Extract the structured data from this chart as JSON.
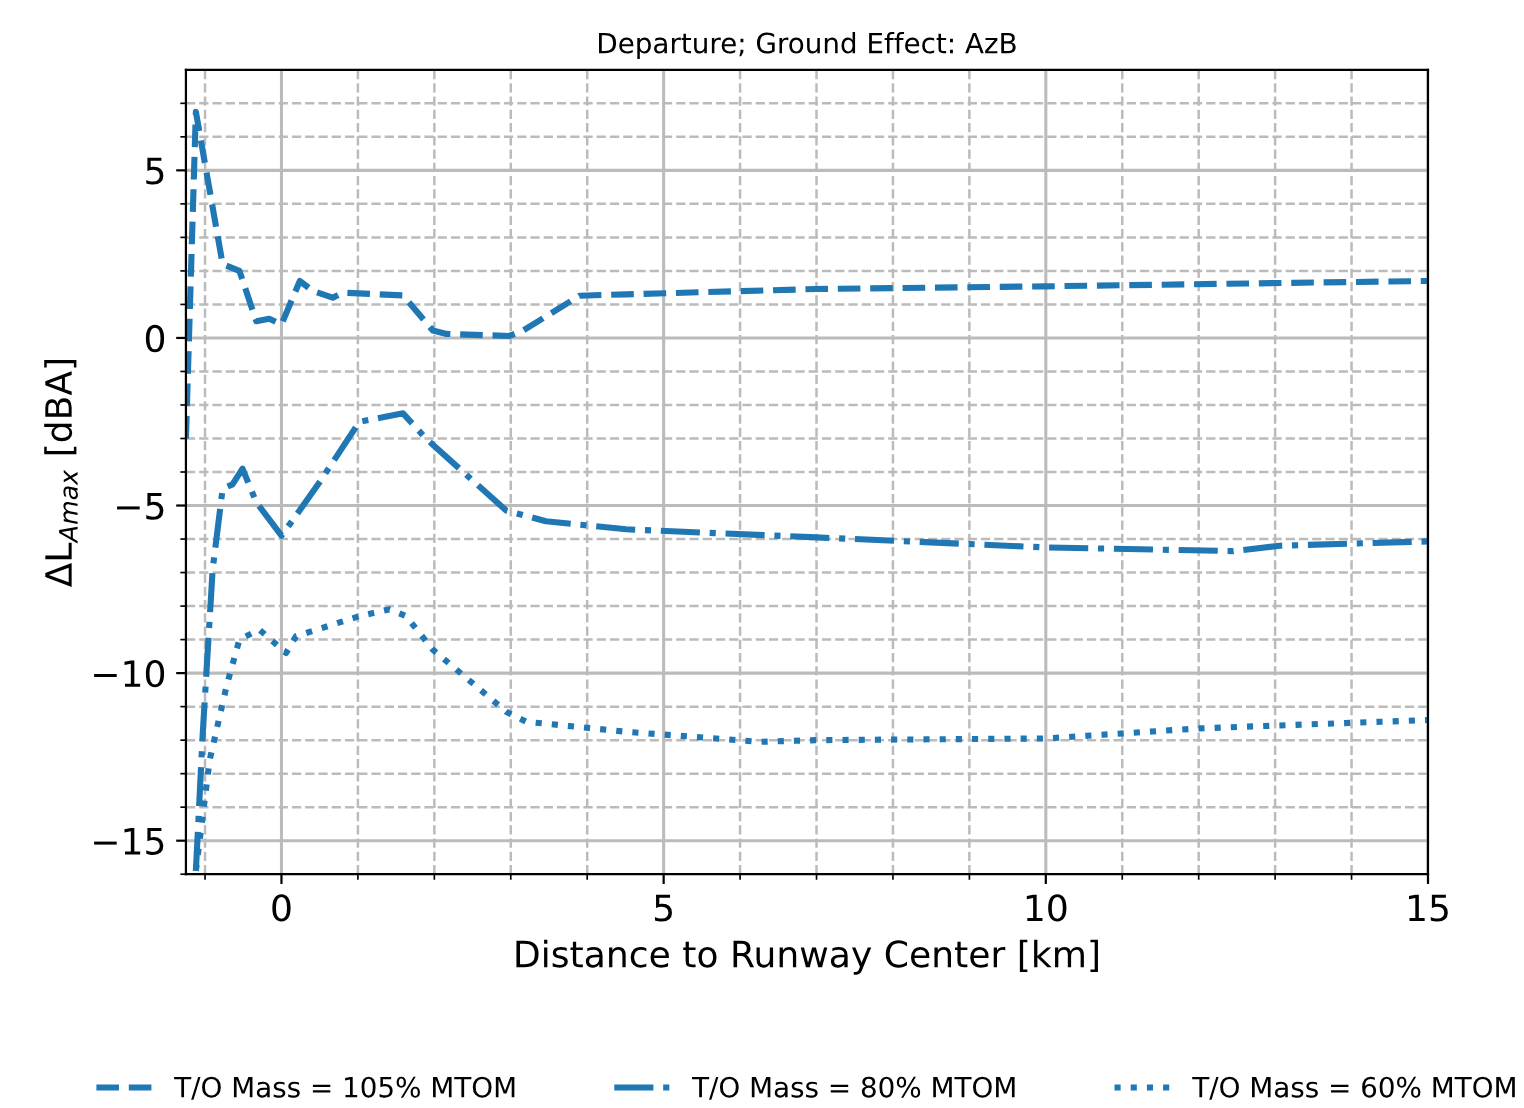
{
  "chart_data": {
    "type": "line",
    "title": "Departure; Ground Effect: AzB",
    "xlabel": "Distance to Runway Center [km]",
    "ylabel": "ΔL$_{Amax}$ [dBA]",
    "xlim": [
      -1.25,
      15
    ],
    "ylim": [
      -16,
      8
    ],
    "xticks": [
      {
        "value": -1,
        "label": null
      },
      0,
      {
        "value": 1,
        "label": null
      },
      {
        "value": 2,
        "label": null
      },
      {
        "value": 3,
        "label": null
      },
      {
        "value": 4,
        "label": null
      },
      5,
      {
        "value": 6,
        "label": null
      },
      {
        "value": 7,
        "label": null
      },
      {
        "value": 8,
        "label": null
      },
      {
        "value": 9,
        "label": null
      },
      10,
      {
        "value": 11,
        "label": null
      },
      {
        "value": 12,
        "label": null
      },
      {
        "value": 13,
        "label": null
      },
      {
        "value": 14,
        "label": null
      },
      15
    ],
    "yticks": [
      {
        "value": -16,
        "label": null
      },
      -15,
      {
        "value": -14,
        "label": null
      },
      {
        "value": -13,
        "label": null
      },
      {
        "value": -12,
        "label": null
      },
      {
        "value": -11,
        "label": null
      },
      -10,
      {
        "value": -9,
        "label": null
      },
      {
        "value": -8,
        "label": null
      },
      {
        "value": -7,
        "label": null
      },
      {
        "value": -6,
        "label": null
      },
      -5,
      {
        "value": -4,
        "label": null
      },
      {
        "value": -3,
        "label": null
      },
      {
        "value": -2,
        "label": null
      },
      {
        "value": -1,
        "label": null
      },
      0,
      {
        "value": 1,
        "label": null
      },
      {
        "value": 2,
        "label": null
      },
      {
        "value": 3,
        "label": null
      },
      {
        "value": 4,
        "label": null
      },
      5,
      {
        "value": 6,
        "label": null
      },
      {
        "value": 7,
        "label": null
      }
    ],
    "grid": true,
    "legend": "bottom",
    "marker": "none",
    "series": [
      {
        "name": "T/O Mass = 105% MTOM",
        "color": "#1f77b4",
        "line_style": "dashed",
        "x": [
          -1.25,
          -1.12,
          -0.77,
          -0.55,
          -0.33,
          -0.16,
          0,
          0.24,
          0.41,
          0.67,
          0.8,
          1.59,
          1.98,
          2.16,
          2.98,
          3.16,
          3.9,
          4.5,
          7.0,
          10,
          15
        ],
        "values": [
          -3,
          6.75,
          2.2,
          2.0,
          0.5,
          0.57,
          0.4,
          1.7,
          1.4,
          1.2,
          1.35,
          1.27,
          0.22,
          0.12,
          0.06,
          0.22,
          1.26,
          1.3,
          1.46,
          1.54,
          1.7
        ]
      },
      {
        "name": "T/O Mass = 80% MTOM",
        "color": "#1f77b4",
        "line_style": "dashdot",
        "x": [
          -1.12,
          -1.03,
          -0.9,
          -0.77,
          -0.64,
          -0.51,
          -0.33,
          0,
          0.19,
          0.5,
          1.02,
          1.59,
          1.89,
          2.94,
          3.46,
          4.51,
          7.0,
          10,
          12.45,
          13.06,
          15
        ],
        "values": [
          -15.9,
          -11.8,
          -6.9,
          -4.5,
          -4.37,
          -3.9,
          -4.9,
          -5.9,
          -5.3,
          -4.3,
          -2.5,
          -2.25,
          -3.0,
          -5.15,
          -5.47,
          -5.71,
          -5.95,
          -6.25,
          -6.36,
          -6.2,
          -6.07
        ]
      },
      {
        "name": "T/O Mass = 60% MTOM",
        "color": "#1f77b4",
        "line_style": "dotted",
        "x": [
          -1.12,
          -0.94,
          -0.72,
          -0.55,
          -0.29,
          0.06,
          0.19,
          1.02,
          1.41,
          1.63,
          1.98,
          2.94,
          3.2,
          4.51,
          6.26,
          7.0,
          10,
          12,
          15
        ],
        "values": [
          -15.9,
          -12.6,
          -10.4,
          -9.0,
          -8.7,
          -9.4,
          -8.9,
          -8.3,
          -8.1,
          -8.3,
          -9.3,
          -11.15,
          -11.45,
          -11.75,
          -12.05,
          -12.0,
          -11.95,
          -11.65,
          -11.4
        ]
      }
    ]
  }
}
